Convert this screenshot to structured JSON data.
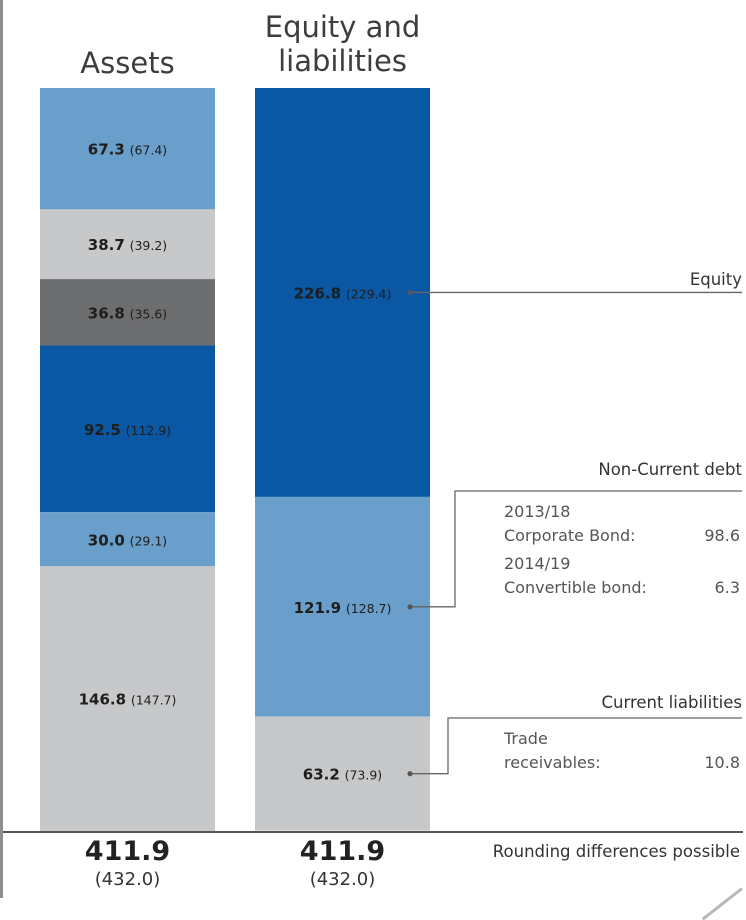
{
  "chart_data": {
    "type": "stacked-bar",
    "categories": [
      "Assets",
      "Equity and liabilities"
    ],
    "title_assets": "Assets",
    "title_el_line1": "Equity and",
    "title_el_line2": "liabilities",
    "series": [
      {
        "category": "Assets",
        "segments": [
          {
            "value": 67.3,
            "value_label": "67.3",
            "prev_label": "(67.4)",
            "color": "#6a9ecb"
          },
          {
            "value": 38.7,
            "value_label": "38.7",
            "prev_label": "(39.2)",
            "color": "#c7c8ca"
          },
          {
            "value": 36.8,
            "value_label": "36.8",
            "prev_label": "(35.6)",
            "color": "#6d6e70"
          },
          {
            "value": 92.5,
            "value_label": "92.5",
            "prev_label": "(112.9)",
            "color": "#0a57a4"
          },
          {
            "value": 30.0,
            "value_label": "30.0",
            "prev_label": "(29.1)",
            "color": "#6a9ecb"
          },
          {
            "value": 146.8,
            "value_label": "146.8",
            "prev_label": "(147.7)",
            "color": "#c7c8ca"
          }
        ]
      },
      {
        "category": "Equity and liabilities",
        "segments": [
          {
            "name": "Equity",
            "value": 226.8,
            "value_label": "226.8",
            "prev_label": "(229.4)",
            "color": "#0a57a4"
          },
          {
            "name": "Non-Current debt",
            "value": 121.9,
            "value_label": "121.9",
            "prev_label": "(128.7)",
            "color": "#6a9ecb"
          },
          {
            "name": "Current liabilities",
            "value": 63.2,
            "value_label": "63.2",
            "prev_label": "(73.9)",
            "color": "#c7c8ca"
          }
        ]
      }
    ],
    "totals": [
      {
        "value": "411.9",
        "prev": "(432.0)"
      },
      {
        "value": "411.9",
        "prev": "(432.0)"
      }
    ]
  },
  "annotations": {
    "equity": "Equity",
    "noncurrent_title": "Non-Current debt",
    "noncurrent_items": [
      {
        "year": "2013/18",
        "label": "Corporate Bond:",
        "value": "98.6"
      },
      {
        "year": "2014/19",
        "label": "Convertible bond:",
        "value": "6.3"
      }
    ],
    "current_title": "Current liabilities",
    "current_item": {
      "line1": "Trade",
      "line2": "receivables:",
      "value": "10.8"
    }
  },
  "footer": {
    "rounding_note": "Rounding differences possible"
  }
}
